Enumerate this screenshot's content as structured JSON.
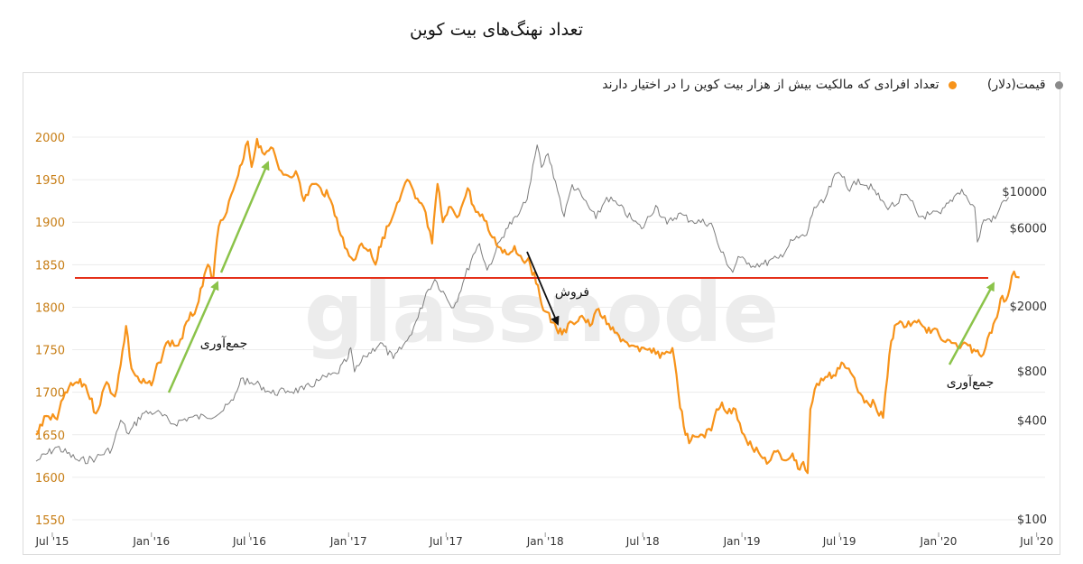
{
  "title": "تعداد نهنگ‌های بیت کوین",
  "colors": {
    "whales": "#f7931a",
    "price": "#7d7d7d",
    "threshold": "#e53019",
    "accumulation": "#8bc34a",
    "sell": "#111111",
    "left_axis_text": "#c77d14",
    "grid": "#ececec",
    "axis_text": "#333333",
    "watermark": "#ececec"
  },
  "watermark": "glassnode",
  "chart_data": {
    "type": "line",
    "title": "تعداد نهنگ‌های بیت کوین",
    "x_ticks": [
      "Jul '15",
      "Jan '16",
      "Jul '16",
      "Jan '17",
      "Jul '17",
      "Jan '18",
      "Jul '18",
      "Jan '19",
      "Jul '19",
      "Jan '20",
      "Jul '20"
    ],
    "x_range": [
      "2015-06-01",
      "2020-07-20"
    ],
    "left_axis": {
      "ticks": [
        1550,
        1600,
        1650,
        1700,
        1750,
        1800,
        1850,
        1900,
        1950,
        2000
      ],
      "range": [
        1540,
        2010
      ]
    },
    "right_axis": {
      "label": "قیمت(دلار)",
      "ticks": [
        "$100",
        "$400",
        "$800",
        "$2000",
        "$6000",
        "$10000"
      ],
      "scale": "log"
    },
    "legend": [
      {
        "name": "تعداد افرادی که مالکیت بیش از هزار بیت کوین را در اختیار دارند",
        "color": "#f7931a",
        "axis": "left"
      },
      {
        "name": "قیمت(دلار)",
        "color": "#7d7d7d",
        "axis": "right"
      }
    ],
    "series": [
      {
        "name": "تعداد افرادی که مالکیت بیش از هزار بیت کوین را در اختیار دارند",
        "color": "#f7931a",
        "points": [
          [
            "2015-06-01",
            1650
          ],
          [
            "2015-06-20",
            1672
          ],
          [
            "2015-07-10",
            1668
          ],
          [
            "2015-07-25",
            1700
          ],
          [
            "2015-08-15",
            1712
          ],
          [
            "2015-09-01",
            1708
          ],
          [
            "2015-09-20",
            1675
          ],
          [
            "2015-10-10",
            1712
          ],
          [
            "2015-10-25",
            1695
          ],
          [
            "2015-11-05",
            1732
          ],
          [
            "2015-11-15",
            1778
          ],
          [
            "2015-11-25",
            1728
          ],
          [
            "2015-12-10",
            1713
          ],
          [
            "2016-01-01",
            1708
          ],
          [
            "2016-01-15",
            1735
          ],
          [
            "2016-02-01",
            1760
          ],
          [
            "2016-02-20",
            1755
          ],
          [
            "2016-03-10",
            1785
          ],
          [
            "2016-03-25",
            1800
          ],
          [
            "2016-04-05",
            1825
          ],
          [
            "2016-04-15",
            1850
          ],
          [
            "2016-04-25",
            1835
          ],
          [
            "2016-05-05",
            1895
          ],
          [
            "2016-05-20",
            1912
          ],
          [
            "2016-06-01",
            1938
          ],
          [
            "2016-06-10",
            1955
          ],
          [
            "2016-06-20",
            1975
          ],
          [
            "2016-06-28",
            1995
          ],
          [
            "2016-07-05",
            1965
          ],
          [
            "2016-07-15",
            1998
          ],
          [
            "2016-07-25",
            1982
          ],
          [
            "2016-08-10",
            1988
          ],
          [
            "2016-08-25",
            1962
          ],
          [
            "2016-09-10",
            1955
          ],
          [
            "2016-09-25",
            1960
          ],
          [
            "2016-10-10",
            1925
          ],
          [
            "2016-10-25",
            1945
          ],
          [
            "2016-11-10",
            1940
          ],
          [
            "2016-11-25",
            1930
          ],
          [
            "2016-12-10",
            1905
          ],
          [
            "2016-12-25",
            1870
          ],
          [
            "2017-01-10",
            1855
          ],
          [
            "2017-01-25",
            1875
          ],
          [
            "2017-02-10",
            1868
          ],
          [
            "2017-02-20",
            1850
          ],
          [
            "2017-03-05",
            1882
          ],
          [
            "2017-03-20",
            1900
          ],
          [
            "2017-04-05",
            1925
          ],
          [
            "2017-04-20",
            1950
          ],
          [
            "2017-05-05",
            1928
          ],
          [
            "2017-05-20",
            1918
          ],
          [
            "2017-06-05",
            1875
          ],
          [
            "2017-06-15",
            1945
          ],
          [
            "2017-06-25",
            1900
          ],
          [
            "2017-07-10",
            1918
          ],
          [
            "2017-07-25",
            1908
          ],
          [
            "2017-08-10",
            1940
          ],
          [
            "2017-08-25",
            1912
          ],
          [
            "2017-09-10",
            1902
          ],
          [
            "2017-09-25",
            1882
          ],
          [
            "2017-10-10",
            1870
          ],
          [
            "2017-10-25",
            1862
          ],
          [
            "2017-11-05",
            1872
          ],
          [
            "2017-11-20",
            1855
          ],
          [
            "2017-12-01",
            1858
          ],
          [
            "2017-12-15",
            1828
          ],
          [
            "2018-01-01",
            1795
          ],
          [
            "2018-01-15",
            1782
          ],
          [
            "2018-02-01",
            1768
          ],
          [
            "2018-02-20",
            1782
          ],
          [
            "2018-03-10",
            1790
          ],
          [
            "2018-03-25",
            1778
          ],
          [
            "2018-04-10",
            1798
          ],
          [
            "2018-04-25",
            1780
          ],
          [
            "2018-05-10",
            1770
          ],
          [
            "2018-05-25",
            1762
          ],
          [
            "2018-06-10",
            1755
          ],
          [
            "2018-06-25",
            1748
          ],
          [
            "2018-07-10",
            1750
          ],
          [
            "2018-07-25",
            1745
          ],
          [
            "2018-08-10",
            1745
          ],
          [
            "2018-08-25",
            1752
          ],
          [
            "2018-09-05",
            1700
          ],
          [
            "2018-09-15",
            1660
          ],
          [
            "2018-09-25",
            1640
          ],
          [
            "2018-10-05",
            1648
          ],
          [
            "2018-10-20",
            1650
          ],
          [
            "2018-11-05",
            1655
          ],
          [
            "2018-11-15",
            1680
          ],
          [
            "2018-11-25",
            1688
          ],
          [
            "2018-12-05",
            1675
          ],
          [
            "2018-12-20",
            1680
          ],
          [
            "2019-01-05",
            1650
          ],
          [
            "2019-01-20",
            1635
          ],
          [
            "2019-02-05",
            1625
          ],
          [
            "2019-02-20",
            1618
          ],
          [
            "2019-03-05",
            1630
          ],
          [
            "2019-03-20",
            1620
          ],
          [
            "2019-04-05",
            1628
          ],
          [
            "2019-04-15",
            1610
          ],
          [
            "2019-04-25",
            1618
          ],
          [
            "2019-05-03",
            1605
          ],
          [
            "2019-05-08",
            1680
          ],
          [
            "2019-05-20",
            1710
          ],
          [
            "2019-06-05",
            1718
          ],
          [
            "2019-06-20",
            1720
          ],
          [
            "2019-07-05",
            1735
          ],
          [
            "2019-07-15",
            1728
          ],
          [
            "2019-07-25",
            1720
          ],
          [
            "2019-08-05",
            1700
          ],
          [
            "2019-08-20",
            1690
          ],
          [
            "2019-09-05",
            1685
          ],
          [
            "2019-09-20",
            1670
          ],
          [
            "2019-09-28",
            1718
          ],
          [
            "2019-10-05",
            1760
          ],
          [
            "2019-10-15",
            1780
          ],
          [
            "2019-10-25",
            1782
          ],
          [
            "2019-11-10",
            1778
          ],
          [
            "2019-11-25",
            1785
          ],
          [
            "2019-12-10",
            1770
          ],
          [
            "2019-12-25",
            1775
          ],
          [
            "2020-01-10",
            1760
          ],
          [
            "2020-01-25",
            1758
          ],
          [
            "2020-02-10",
            1752
          ],
          [
            "2020-02-25",
            1755
          ],
          [
            "2020-03-10",
            1748
          ],
          [
            "2020-03-20",
            1742
          ],
          [
            "2020-03-28",
            1752
          ],
          [
            "2020-04-05",
            1770
          ],
          [
            "2020-04-15",
            1785
          ],
          [
            "2020-04-25",
            1810
          ],
          [
            "2020-05-05",
            1808
          ],
          [
            "2020-05-12",
            1822
          ],
          [
            "2020-05-20",
            1842
          ],
          [
            "2020-05-30",
            1835
          ]
        ]
      },
      {
        "name": "قیمت(دلار)",
        "color": "#7d7d7d",
        "points": [
          [
            "2015-06-01",
            225
          ],
          [
            "2015-07-10",
            275
          ],
          [
            "2015-08-20",
            225
          ],
          [
            "2015-09-20",
            235
          ],
          [
            "2015-10-20",
            270
          ],
          [
            "2015-11-05",
            400
          ],
          [
            "2015-11-20",
            330
          ],
          [
            "2015-12-15",
            440
          ],
          [
            "2016-01-10",
            450
          ],
          [
            "2016-02-10",
            380
          ],
          [
            "2016-03-10",
            415
          ],
          [
            "2016-04-10",
            420
          ],
          [
            "2016-05-10",
            450
          ],
          [
            "2016-06-01",
            530
          ],
          [
            "2016-06-15",
            720
          ],
          [
            "2016-07-01",
            670
          ],
          [
            "2016-07-20",
            660
          ],
          [
            "2016-08-10",
            585
          ],
          [
            "2016-09-10",
            605
          ],
          [
            "2016-10-10",
            615
          ],
          [
            "2016-11-10",
            710
          ],
          [
            "2016-12-10",
            770
          ],
          [
            "2016-12-31",
            960
          ],
          [
            "2017-01-05",
            1110
          ],
          [
            "2017-01-12",
            790
          ],
          [
            "2017-02-01",
            980
          ],
          [
            "2017-03-01",
            1190
          ],
          [
            "2017-03-25",
            950
          ],
          [
            "2017-04-20",
            1230
          ],
          [
            "2017-05-10",
            1700
          ],
          [
            "2017-05-25",
            2400
          ],
          [
            "2017-06-10",
            2900
          ],
          [
            "2017-07-15",
            1950
          ],
          [
            "2017-08-01",
            2750
          ],
          [
            "2017-08-20",
            4100
          ],
          [
            "2017-09-01",
            4800
          ],
          [
            "2017-09-15",
            3300
          ],
          [
            "2017-10-01",
            4300
          ],
          [
            "2017-10-20",
            5900
          ],
          [
            "2017-11-10",
            7000
          ],
          [
            "2017-11-25",
            8500
          ],
          [
            "2017-12-05",
            11500
          ],
          [
            "2017-12-17",
            19200
          ],
          [
            "2017-12-25",
            14000
          ],
          [
            "2018-01-06",
            17000
          ],
          [
            "2018-01-20",
            11500
          ],
          [
            "2018-02-05",
            7000
          ],
          [
            "2018-02-20",
            11000
          ],
          [
            "2018-03-10",
            9300
          ],
          [
            "2018-04-05",
            6800
          ],
          [
            "2018-04-25",
            9200
          ],
          [
            "2018-05-15",
            8300
          ],
          [
            "2018-06-10",
            6800
          ],
          [
            "2018-06-29",
            5900
          ],
          [
            "2018-07-25",
            8200
          ],
          [
            "2018-08-15",
            6300
          ],
          [
            "2018-09-05",
            7300
          ],
          [
            "2018-10-01",
            6600
          ],
          [
            "2018-11-05",
            6400
          ],
          [
            "2018-11-20",
            4500
          ],
          [
            "2018-12-15",
            3200
          ],
          [
            "2018-12-25",
            4000
          ],
          [
            "2019-01-10",
            3600
          ],
          [
            "2019-02-10",
            3600
          ],
          [
            "2019-03-10",
            3900
          ],
          [
            "2019-04-05",
            5000
          ],
          [
            "2019-05-01",
            5400
          ],
          [
            "2019-05-15",
            8000
          ],
          [
            "2019-06-01",
            8500
          ],
          [
            "2019-06-26",
            12900
          ],
          [
            "2019-07-10",
            12300
          ],
          [
            "2019-07-20",
            10000
          ],
          [
            "2019-08-05",
            11900
          ],
          [
            "2019-09-01",
            10300
          ],
          [
            "2019-09-25",
            8100
          ],
          [
            "2019-10-15",
            8300
          ],
          [
            "2019-10-27",
            9500
          ],
          [
            "2019-11-10",
            8800
          ],
          [
            "2019-11-25",
            7000
          ],
          [
            "2019-12-15",
            7200
          ],
          [
            "2020-01-05",
            7300
          ],
          [
            "2020-01-30",
            9300
          ],
          [
            "2020-02-13",
            10300
          ],
          [
            "2020-02-25",
            8800
          ],
          [
            "2020-03-08",
            8000
          ],
          [
            "2020-03-13",
            4900
          ],
          [
            "2020-03-25",
            6700
          ],
          [
            "2020-04-15",
            6800
          ],
          [
            "2020-05-01",
            8800
          ],
          [
            "2020-05-10",
            9200
          ]
        ]
      }
    ],
    "annotations": [
      {
        "text": "جمع‌آوری",
        "kind": "accumulation"
      },
      {
        "text": "فروش",
        "kind": "sell"
      },
      {
        "text": "جمع‌آوری",
        "kind": "accumulation"
      }
    ],
    "threshold_value": 1842
  }
}
